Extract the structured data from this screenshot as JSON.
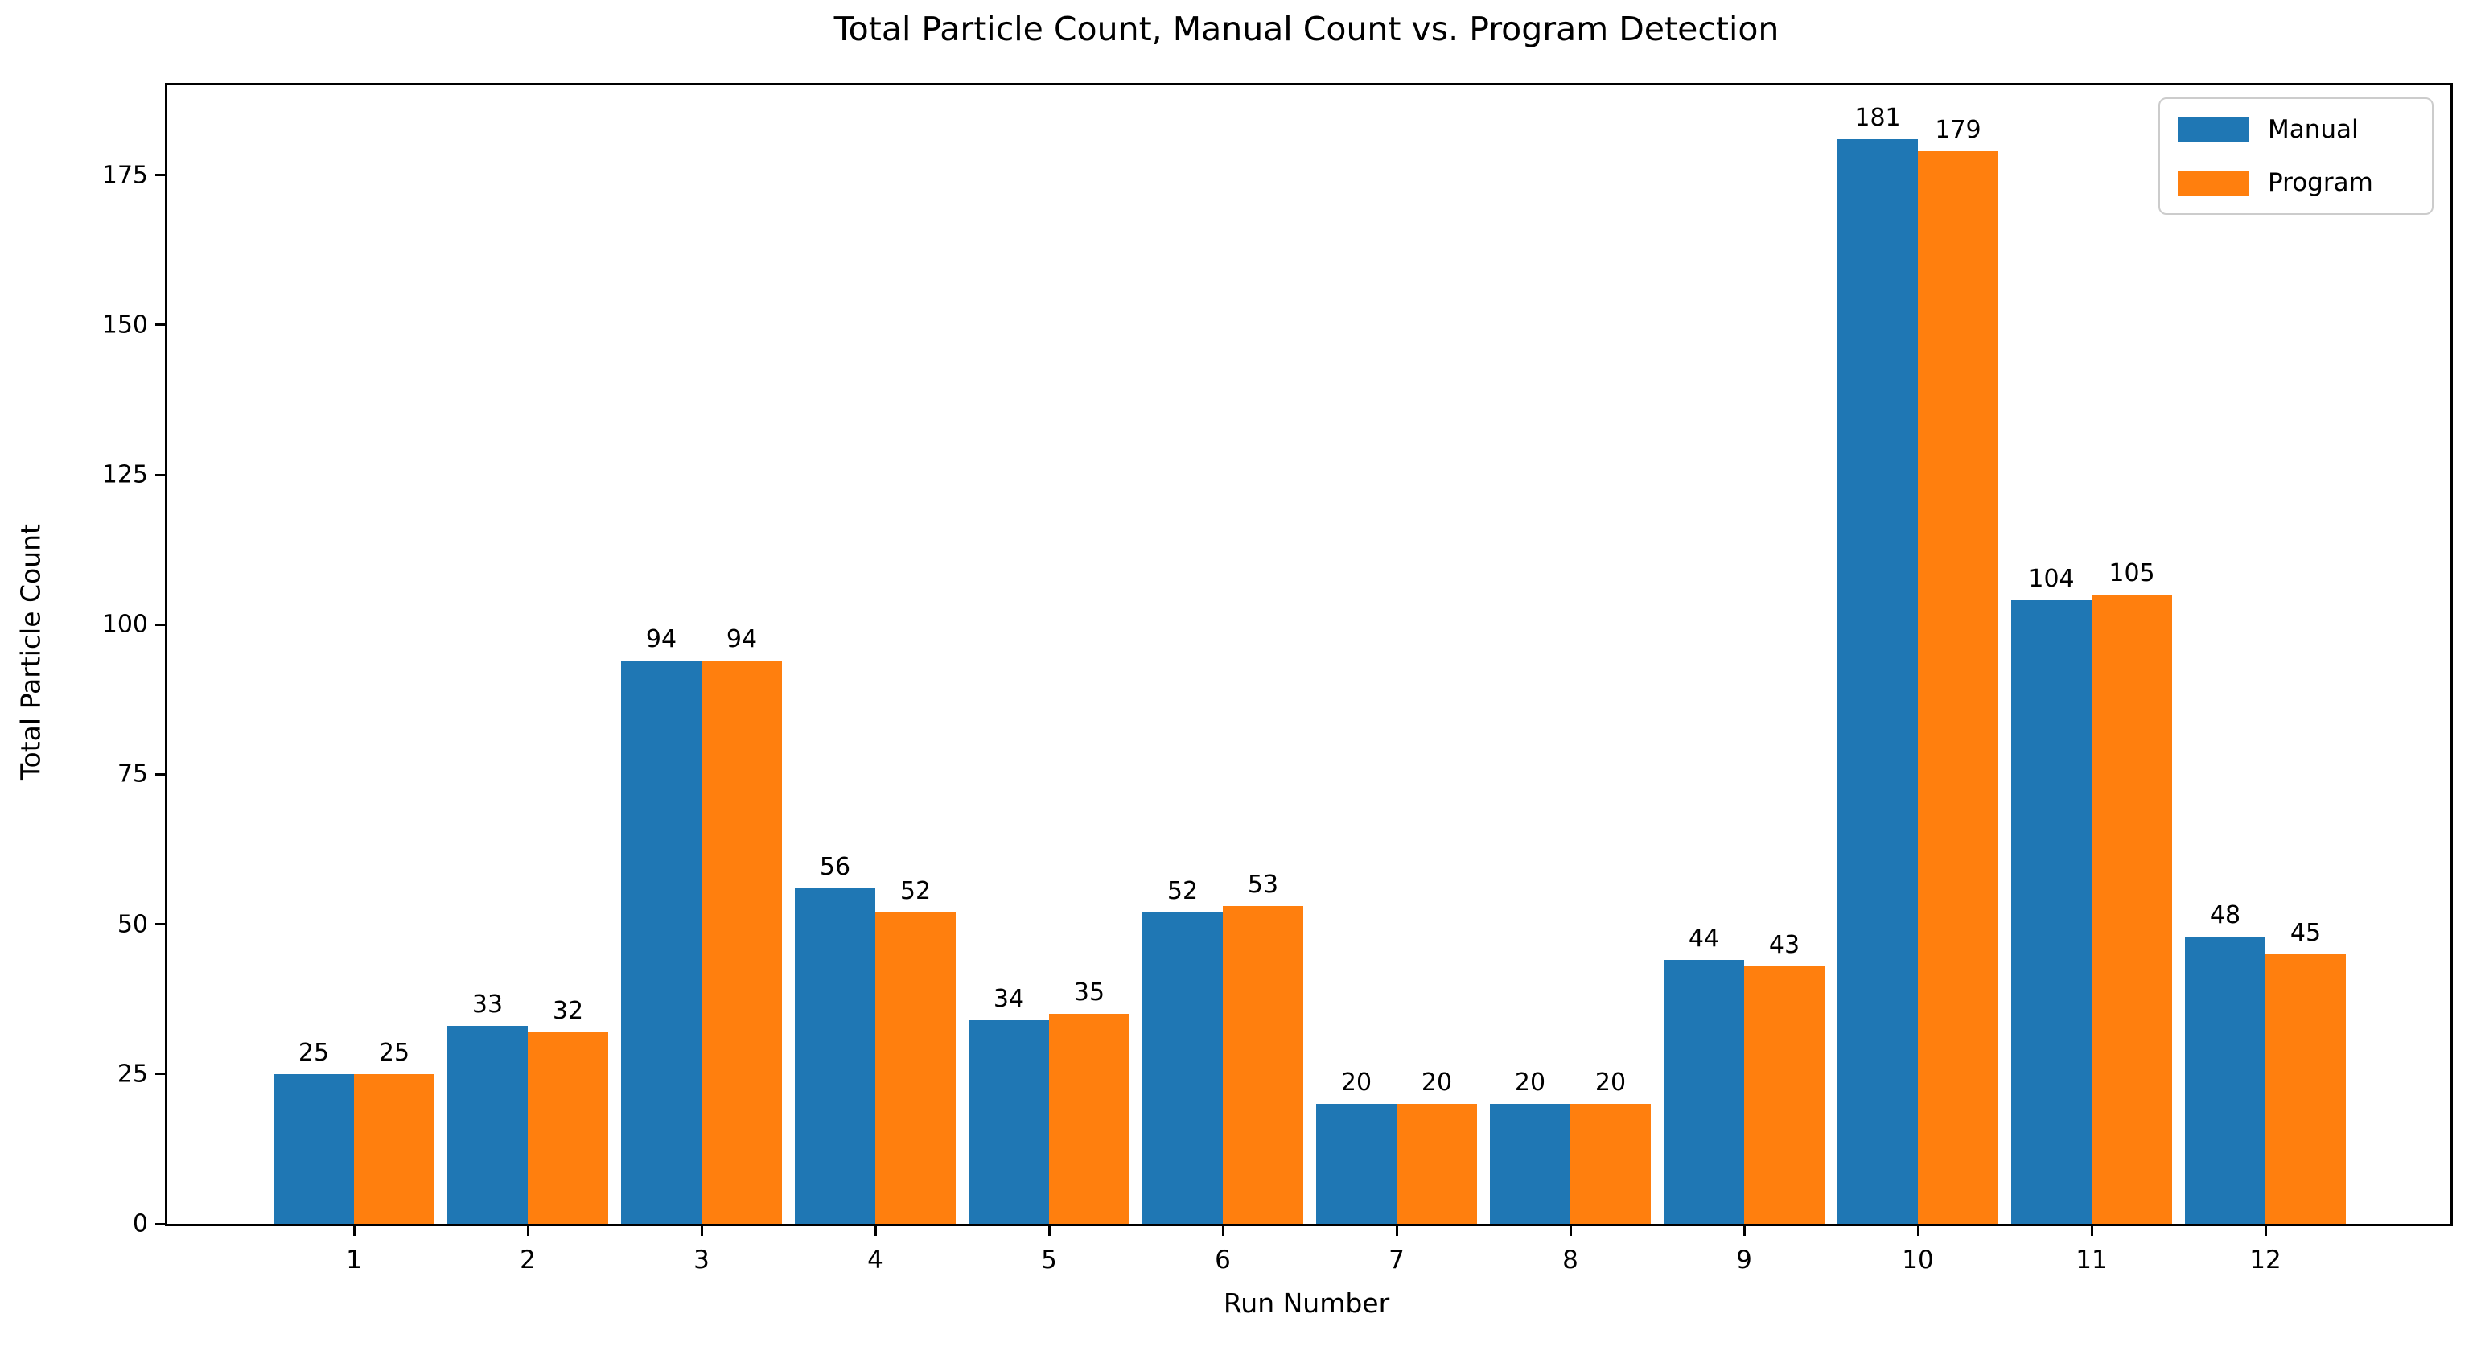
{
  "chart_data": {
    "type": "bar",
    "title": "Total Particle Count, Manual Count vs. Program Detection",
    "xlabel": "Run Number",
    "ylabel": "Total Particle Count",
    "categories": [
      "1",
      "2",
      "3",
      "4",
      "5",
      "6",
      "7",
      "8",
      "9",
      "10",
      "11",
      "12"
    ],
    "series": [
      {
        "name": "Manual",
        "color": "#1f77b4",
        "values": [
          25,
          33,
          94,
          56,
          34,
          52,
          20,
          20,
          44,
          181,
          104,
          48
        ]
      },
      {
        "name": "Program",
        "color": "#ff7f0e",
        "values": [
          25,
          32,
          94,
          52,
          35,
          53,
          20,
          20,
          43,
          179,
          105,
          45
        ]
      }
    ],
    "bar_value_labels": true,
    "yticks": [
      0,
      25,
      50,
      75,
      100,
      125,
      150,
      175
    ],
    "ylim": [
      0,
      190
    ],
    "grid": false,
    "legend_position": "upper right"
  }
}
